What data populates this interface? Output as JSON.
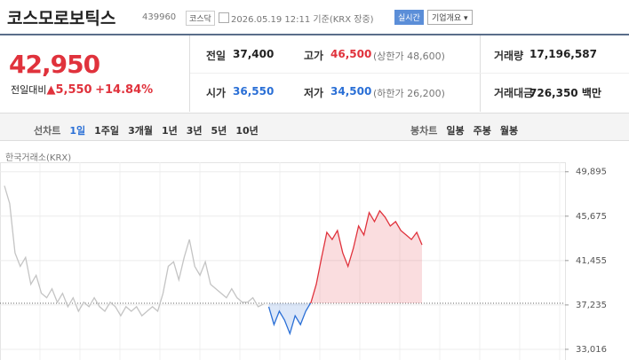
{
  "header": {
    "title": "코스모로보틱스",
    "code": "439960",
    "market": "코스닥",
    "datetime": "2026.05.19 12:11 기준(KRX 장중)",
    "realtime": "실시간",
    "company_button": "기업개요"
  },
  "price": {
    "current": "42,950",
    "change_label": "전일대비",
    "change": "5,550",
    "change_rate": "+14.84%"
  },
  "stats": [
    {
      "label": "전일",
      "value": "37,400"
    },
    {
      "label": "고가",
      "value": "46,500",
      "note": "(상한가 48,600)"
    },
    {
      "label": "거래량",
      "value": "17,196,587"
    },
    {
      "label": "시가",
      "value": "36,550"
    },
    {
      "label": "저가",
      "value": "34,500",
      "note": "(하한가 26,200)"
    },
    {
      "label": "거래대금",
      "value": "726,350 백만"
    }
  ],
  "toolbar": {
    "line_chart": "선차트",
    "periods": [
      "1일",
      "1주일",
      "3개월",
      "1년",
      "3년",
      "5년",
      "10년"
    ],
    "candle_chart": "봉차트",
    "candles": [
      "일봉",
      "주봉",
      "월봉"
    ]
  },
  "chart_data": {
    "type": "line",
    "source": "한국거래소(KRX)",
    "base": 37400,
    "grid": true,
    "ylim": [
      32000,
      50800
    ],
    "yticks": [
      {
        "value": 33016,
        "label": "33,016"
      },
      {
        "value": 37235,
        "label": "37,235"
      },
      {
        "value": 41455,
        "label": "41,455"
      },
      {
        "value": 45675,
        "label": "45,675"
      },
      {
        "value": 49895,
        "label": "49,895"
      }
    ],
    "series": [
      {
        "color": "#c4c4c4",
        "values": [
          48570,
          46870,
          42180,
          40900,
          41750,
          39200,
          40050,
          38340,
          37920,
          38770,
          37490,
          38340,
          37065,
          37920,
          36640,
          37490,
          37065,
          37920,
          37065,
          36640,
          37490,
          37065,
          36210,
          37065,
          36640,
          37065,
          36210,
          36640,
          37065,
          36640,
          38340,
          40900,
          41330,
          39620,
          41750,
          43460,
          40900,
          40050,
          41330,
          39200,
          38770,
          38340,
          37920,
          38770,
          37920,
          37490,
          37490,
          37920,
          37065,
          37320,
          null,
          null,
          null,
          null,
          null,
          null,
          null,
          null,
          null,
          null,
          null,
          null,
          null,
          null,
          null,
          null,
          null,
          null,
          null,
          null,
          null,
          null,
          null,
          null,
          null,
          null,
          null,
          null,
          null,
          null
        ]
      },
      {
        "color": "#e0323c",
        "color_down": "#2a6fd6",
        "values": [
          null,
          null,
          null,
          null,
          null,
          null,
          null,
          null,
          null,
          null,
          null,
          null,
          null,
          null,
          null,
          null,
          null,
          null,
          null,
          null,
          null,
          null,
          null,
          null,
          null,
          null,
          null,
          null,
          null,
          null,
          null,
          null,
          null,
          null,
          null,
          null,
          null,
          null,
          null,
          null,
          null,
          null,
          null,
          null,
          null,
          null,
          null,
          null,
          null,
          null,
          37065,
          35360,
          36640,
          35790,
          34500,
          36210,
          35360,
          36640,
          37490,
          39200,
          41750,
          44140,
          43460,
          44310,
          42180,
          40900,
          42610,
          44740,
          43890,
          46020,
          45160,
          46190,
          45590,
          44740,
          45160,
          44310,
          43890,
          43460,
          44140,
          42950
        ]
      }
    ]
  }
}
